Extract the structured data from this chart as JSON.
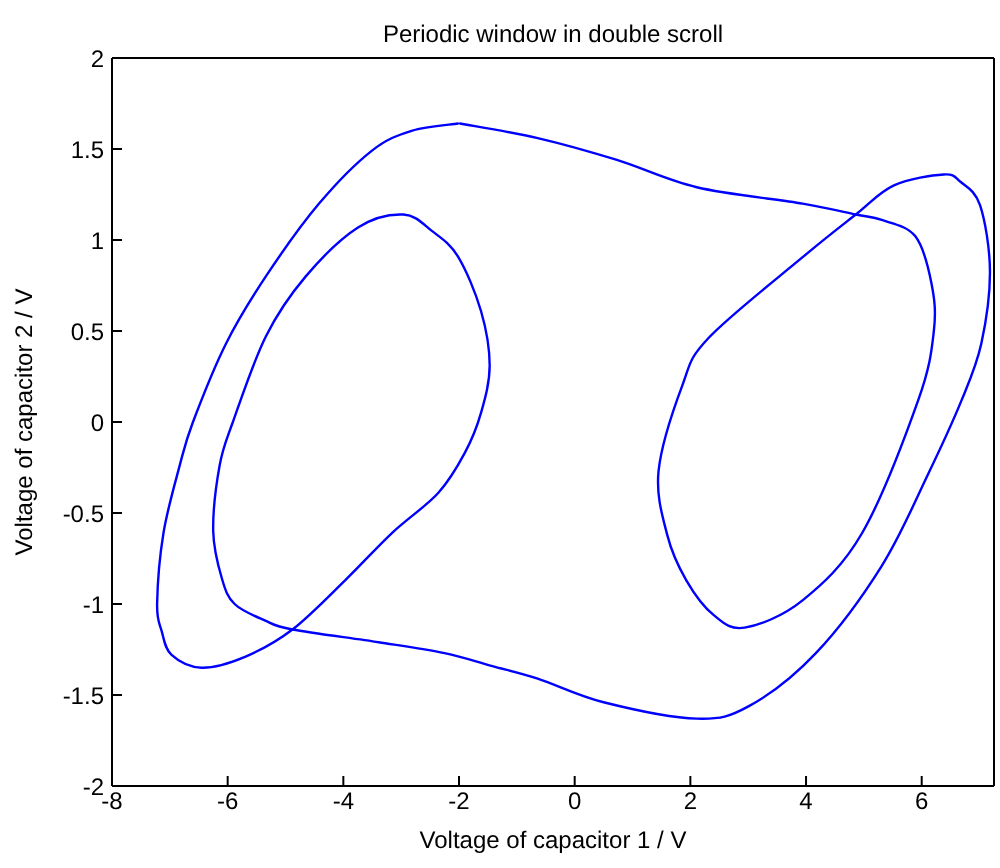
{
  "chart_data": {
    "type": "line",
    "title": "Periodic window in double scroll",
    "xlabel": "Voltage of capacitor 1 / V",
    "ylabel": "Voltage of capacitor 2 / V",
    "x": [
      -2.02,
      -2.82,
      -3.51,
      -4.42,
      -5.34,
      -6.03,
      -6.6,
      -6.83,
      -7.11,
      -7.22,
      -7.14,
      -6.97,
      -6.45,
      -5.7,
      -4.88,
      -3.97,
      -3.16,
      -2.36,
      -1.9,
      -1.62,
      -1.47,
      -1.62,
      -2.02,
      -2.47,
      -2.96,
      -3.74,
      -4.65,
      -5.34,
      -5.91,
      -6.14,
      -6.25,
      -6.1,
      -5.88,
      -5.36,
      -4.88,
      -3.39,
      -2.25,
      -1.44,
      -0.64,
      0.5,
      2.11,
      3.02,
      4.17,
      5.31,
      6.12,
      6.69,
      7.03,
      7.18,
      7.01,
      6.67,
      6.38,
      5.52,
      4.86,
      3.92,
      2.31,
      1.86,
      1.45,
      1.6,
      1.93,
      2.4,
      2.94,
      3.94,
      4.97,
      5.94,
      6.21,
      6.17,
      5.89,
      5.31,
      4.86,
      3.94,
      2.11,
      0.73,
      -0.64,
      -1.98
    ],
    "values": [
      1.64,
      1.6,
      1.49,
      1.2,
      0.8,
      0.43,
      0,
      -0.24,
      -0.61,
      -1,
      -1.15,
      -1.28,
      -1.35,
      -1.29,
      -1.14,
      -0.87,
      -0.61,
      -0.39,
      -0.17,
      0.05,
      0.31,
      0.61,
      0.91,
      1.05,
      1.14,
      1.07,
      0.8,
      0.47,
      0,
      -0.24,
      -0.6,
      -0.86,
      -1,
      -1.09,
      -1.14,
      -1.21,
      -1.27,
      -1.34,
      -1.41,
      -1.54,
      -1.63,
      -1.56,
      -1.27,
      -0.79,
      -0.28,
      0.12,
      0.43,
      0.83,
      1.19,
      1.32,
      1.36,
      1.3,
      1.14,
      0.9,
      0.46,
      0.2,
      -0.27,
      -0.62,
      -0.87,
      -1.06,
      -1.13,
      -0.98,
      -0.61,
      0.12,
      0.5,
      0.76,
      1.02,
      1.11,
      1.14,
      1.2,
      1.29,
      1.44,
      1.56,
      1.64
    ],
    "color": "#0000ff",
    "xlim": [
      -8,
      7.25
    ],
    "ylim": [
      -2,
      2
    ],
    "xticks": [
      -8,
      -6,
      -4,
      -2,
      0,
      2,
      4,
      6
    ],
    "yticks": [
      -2,
      -1.5,
      -1,
      -0.5,
      0,
      0.5,
      1,
      1.5,
      2
    ],
    "marker": "none",
    "line_style": "solid"
  }
}
